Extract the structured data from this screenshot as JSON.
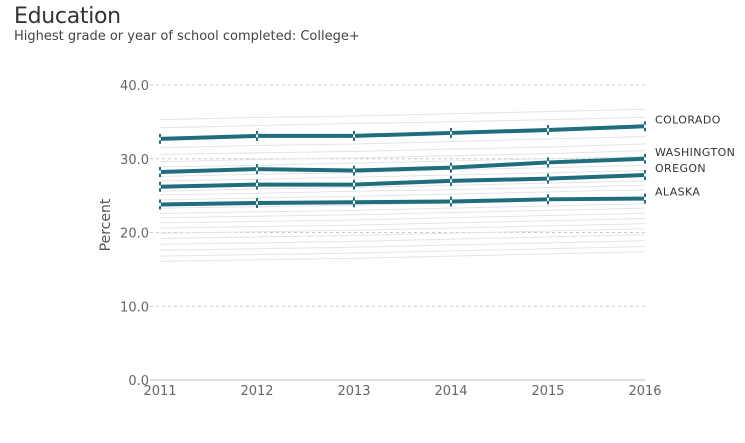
{
  "header": {
    "title": "Education",
    "subtitle": "Highest grade or year of school completed: College+"
  },
  "chart_data": {
    "type": "line",
    "title": "Education",
    "subtitle": "Highest grade or year of school completed: College+",
    "xlabel": "",
    "ylabel": "Percent",
    "x": [
      "2011",
      "2012",
      "2013",
      "2014",
      "2015",
      "2016"
    ],
    "ylim": [
      0,
      40
    ],
    "yticks": [
      "0.0",
      "10.0",
      "20.0",
      "30.0",
      "40.0"
    ],
    "grid": true,
    "highlight_color": "#1f6e7e",
    "background_color": "#e4e4e4",
    "series": [
      {
        "name": "COLORADO",
        "values": [
          32.7,
          33.1,
          33.1,
          33.5,
          33.9,
          34.4
        ]
      },
      {
        "name": "WASHINGTON",
        "values": [
          28.2,
          28.6,
          28.4,
          28.8,
          29.5,
          30.0
        ]
      },
      {
        "name": "OREGON",
        "values": [
          26.2,
          26.5,
          26.5,
          27.0,
          27.3,
          27.8
        ]
      },
      {
        "name": "ALASKA",
        "values": [
          23.8,
          24.0,
          24.1,
          24.2,
          24.5,
          24.6
        ]
      }
    ],
    "background_series": [
      {
        "values": [
          35.3,
          35.6,
          35.8,
          36.1,
          36.4,
          36.7
        ]
      },
      {
        "values": [
          34.2,
          34.5,
          34.8,
          35.0,
          35.3,
          35.6
        ]
      },
      {
        "values": [
          31.5,
          31.8,
          32.0,
          32.3,
          32.7,
          33.0
        ]
      },
      {
        "values": [
          30.6,
          30.8,
          31.0,
          31.3,
          31.6,
          32.0
        ]
      },
      {
        "values": [
          29.6,
          29.9,
          30.1,
          30.4,
          30.7,
          31.1
        ]
      },
      {
        "values": [
          28.9,
          29.1,
          29.4,
          29.7,
          30.0,
          30.3
        ]
      },
      {
        "values": [
          27.6,
          27.9,
          28.1,
          28.5,
          28.8,
          29.1
        ]
      },
      {
        "values": [
          27.0,
          27.2,
          27.5,
          27.8,
          28.1,
          28.4
        ]
      },
      {
        "values": [
          25.6,
          25.9,
          26.1,
          26.4,
          26.7,
          27.0
        ]
      },
      {
        "values": [
          25.1,
          25.3,
          25.6,
          25.8,
          26.1,
          26.4
        ]
      },
      {
        "values": [
          24.4,
          24.7,
          24.9,
          25.2,
          25.5,
          25.8
        ]
      },
      {
        "values": [
          23.3,
          23.5,
          23.7,
          24.0,
          24.3,
          24.6
        ]
      },
      {
        "values": [
          22.6,
          22.8,
          23.0,
          23.3,
          23.6,
          23.9
        ]
      },
      {
        "values": [
          22.0,
          22.2,
          22.4,
          22.7,
          23.0,
          23.3
        ]
      },
      {
        "values": [
          21.3,
          21.5,
          21.7,
          22.0,
          22.3,
          22.6
        ]
      },
      {
        "values": [
          20.6,
          20.8,
          21.0,
          21.3,
          21.6,
          21.9
        ]
      },
      {
        "values": [
          19.9,
          20.1,
          20.3,
          20.6,
          20.9,
          21.2
        ]
      },
      {
        "values": [
          19.2,
          19.4,
          19.6,
          19.9,
          20.2,
          20.5
        ]
      },
      {
        "values": [
          18.4,
          18.6,
          18.8,
          19.1,
          19.4,
          19.7
        ]
      },
      {
        "values": [
          17.6,
          17.8,
          18.0,
          18.3,
          18.6,
          18.9
        ]
      },
      {
        "values": [
          16.8,
          17.0,
          17.2,
          17.5,
          17.8,
          18.1
        ]
      },
      {
        "values": [
          16.1,
          16.3,
          16.5,
          16.8,
          17.1,
          17.4
        ]
      }
    ]
  }
}
